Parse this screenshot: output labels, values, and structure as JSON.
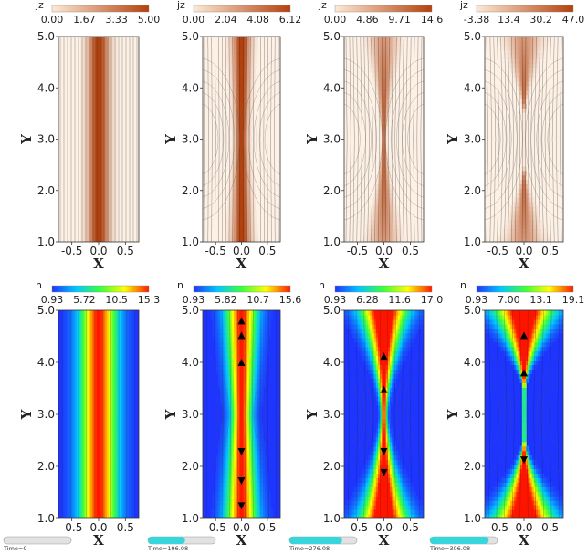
{
  "chart_data": [
    {
      "type": "heatmap",
      "variable": "jz",
      "colorbar_ticks": [
        "0.00",
        "1.67",
        "3.33",
        "5.00"
      ],
      "stage": "top-1",
      "xlabel": "X",
      "ylabel": "Y",
      "x_ticks": [
        "-0.5",
        "0.0",
        "0.5"
      ],
      "y_ticks": [
        "1.0",
        "2.0",
        "3.0",
        "4.0",
        "5.0"
      ],
      "xlim": [
        -0.75,
        0.75
      ],
      "ylim": [
        1.0,
        5.0
      ],
      "colormap": [
        "#fbeee2",
        "#b8430c"
      ],
      "value_range": [
        0.0,
        5.0
      ]
    },
    {
      "type": "heatmap",
      "variable": "jz",
      "colorbar_ticks": [
        "0.00",
        "2.04",
        "4.08",
        "6.12"
      ],
      "stage": "top-2",
      "xlabel": "X",
      "ylabel": "Y",
      "x_ticks": [
        "-0.5",
        "0.0",
        "0.5"
      ],
      "y_ticks": [
        "1.0",
        "2.0",
        "3.0",
        "4.0",
        "5.0"
      ],
      "xlim": [
        -0.75,
        0.75
      ],
      "ylim": [
        1.0,
        5.0
      ],
      "colormap": [
        "#fbeee2",
        "#b8430c"
      ],
      "value_range": [
        0.0,
        6.12
      ]
    },
    {
      "type": "heatmap",
      "variable": "jz",
      "colorbar_ticks": [
        "0.00",
        "4.86",
        "9.71",
        "14.6"
      ],
      "stage": "top-3",
      "xlabel": "X",
      "ylabel": "Y",
      "x_ticks": [
        "-0.5",
        "0.0",
        "0.5"
      ],
      "y_ticks": [
        "1.0",
        "2.0",
        "3.0",
        "4.0",
        "5.0"
      ],
      "xlim": [
        -0.75,
        0.75
      ],
      "ylim": [
        1.0,
        5.0
      ],
      "colormap": [
        "#fbeee2",
        "#b8430c"
      ],
      "value_range": [
        0.0,
        14.6
      ]
    },
    {
      "type": "heatmap",
      "variable": "jz",
      "colorbar_ticks": [
        "-3.38",
        "13.4",
        "30.2",
        "47.0"
      ],
      "stage": "top-4",
      "xlabel": "X",
      "ylabel": "Y",
      "x_ticks": [
        "-0.5",
        "0.0",
        "0.5"
      ],
      "y_ticks": [
        "1.0",
        "2.0",
        "3.0",
        "4.0",
        "5.0"
      ],
      "xlim": [
        -0.75,
        0.75
      ],
      "ylim": [
        1.0,
        5.0
      ],
      "colormap": [
        "#fbeee2",
        "#b8430c"
      ],
      "value_range": [
        -3.38,
        47.0
      ]
    },
    {
      "type": "heatmap",
      "variable": "n",
      "colorbar_ticks": [
        "0.93",
        "5.72",
        "10.5",
        "15.3"
      ],
      "stage": "bottom-1",
      "xlabel": "X",
      "ylabel": "Y",
      "x_ticks": [
        "-0.5",
        "0.0",
        "0.5"
      ],
      "y_ticks": [
        "1.0",
        "2.0",
        "3.0",
        "4.0",
        "5.0"
      ],
      "xlim": [
        -0.75,
        0.75
      ],
      "ylim": [
        1.0,
        5.0
      ],
      "colormap": "rainbow",
      "value_range": [
        0.93,
        15.3
      ],
      "time_label": "Time=0",
      "progress": 0.0
    },
    {
      "type": "heatmap",
      "variable": "n",
      "colorbar_ticks": [
        "0.93",
        "5.82",
        "10.7",
        "15.6"
      ],
      "stage": "bottom-2",
      "xlabel": "X",
      "ylabel": "Y",
      "x_ticks": [
        "-0.5",
        "0.0",
        "0.5"
      ],
      "y_ticks": [
        "1.0",
        "2.0",
        "3.0",
        "4.0",
        "5.0"
      ],
      "xlim": [
        -0.75,
        0.75
      ],
      "ylim": [
        1.0,
        5.0
      ],
      "colormap": "rainbow",
      "value_range": [
        0.93,
        15.6
      ],
      "time_label": "Time=196.08",
      "progress": 0.55
    },
    {
      "type": "heatmap",
      "variable": "n",
      "colorbar_ticks": [
        "0.93",
        "6.28",
        "11.6",
        "17.0"
      ],
      "stage": "bottom-3",
      "xlabel": "X",
      "ylabel": "Y",
      "x_ticks": [
        "-0.5",
        "0.0",
        "0.5"
      ],
      "y_ticks": [
        "1.0",
        "2.0",
        "3.0",
        "4.0",
        "5.0"
      ],
      "xlim": [
        -0.75,
        0.75
      ],
      "ylim": [
        1.0,
        5.0
      ],
      "colormap": "rainbow",
      "value_range": [
        0.93,
        17.0
      ],
      "time_label": "Time=276.08",
      "progress": 0.78
    },
    {
      "type": "heatmap",
      "variable": "n",
      "colorbar_ticks": [
        "0.93",
        "7.00",
        "13.1",
        "19.1"
      ],
      "stage": "bottom-4",
      "xlabel": "X",
      "ylabel": "Y",
      "x_ticks": [
        "-0.5",
        "0.0",
        "0.5"
      ],
      "y_ticks": [
        "1.0",
        "2.0",
        "3.0",
        "4.0",
        "5.0"
      ],
      "xlim": [
        -0.75,
        0.75
      ],
      "ylim": [
        1.0,
        5.0
      ],
      "colormap": "rainbow",
      "value_range": [
        0.93,
        19.1
      ],
      "time_label": "Time=306.08",
      "progress": 0.87
    }
  ],
  "colors": {
    "progress_fill": "#36d6dc",
    "progress_track": "#e2e2e2",
    "contour": "#1a1a1a"
  }
}
